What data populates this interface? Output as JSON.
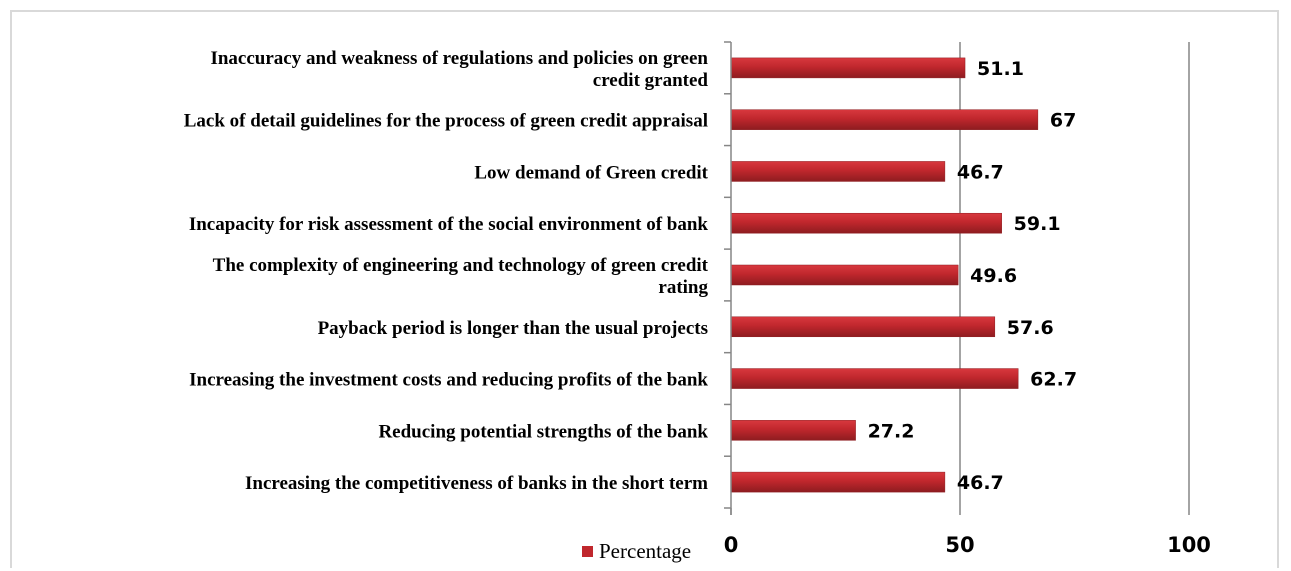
{
  "chart_data": {
    "type": "bar",
    "orientation": "horizontal",
    "categories": [
      "Inaccuracy and weakness of regulations and policies on green credit granted",
      "Lack of detail guidelines for the process of green credit appraisal",
      "Low demand of Green credit",
      "Incapacity for risk assessment of the social environment of bank",
      "The complexity of engineering and technology of green credit rating",
      "Payback period is longer than the usual projects",
      "Increasing the investment costs and reducing profits of the bank",
      "Reducing potential strengths of the bank",
      "Increasing the competitiveness of banks in the short term"
    ],
    "category_lines": [
      [
        "Inaccuracy and weakness of regulations and policies on green",
        "credit granted"
      ],
      [
        "Lack of detail guidelines for the process of green credit appraisal"
      ],
      [
        "Low demand of Green credit"
      ],
      [
        "Incapacity for risk assessment of the social environment of bank"
      ],
      [
        "The complexity of engineering and technology of green credit",
        "rating"
      ],
      [
        "Payback period is longer than the usual projects"
      ],
      [
        "Increasing the investment costs and reducing profits of the bank"
      ],
      [
        "Reducing potential strengths of the bank"
      ],
      [
        "Increasing the competitiveness of banks in the short term"
      ]
    ],
    "series": [
      {
        "name": "Percentage",
        "values": [
          51.1,
          67,
          46.7,
          59.1,
          49.6,
          57.6,
          62.7,
          27.2,
          46.7
        ],
        "value_labels": [
          "51.1",
          "67",
          "46.7",
          "59.1",
          "49.6",
          "57.6",
          "62.7",
          "27.2",
          "46.7"
        ],
        "color": "#c0272d"
      }
    ],
    "title": "",
    "xlabel": "",
    "ylabel": "",
    "xlim": [
      0,
      100
    ],
    "xticks": [
      0,
      50,
      100
    ],
    "xtick_labels": [
      "0",
      "50",
      "100"
    ],
    "grid": "vertical",
    "legend": "bottom",
    "colors": {
      "bar": "#c0272d",
      "bar_dark": "#8e1c20",
      "axis": "#868686",
      "frame": "#d9d9d9"
    }
  }
}
